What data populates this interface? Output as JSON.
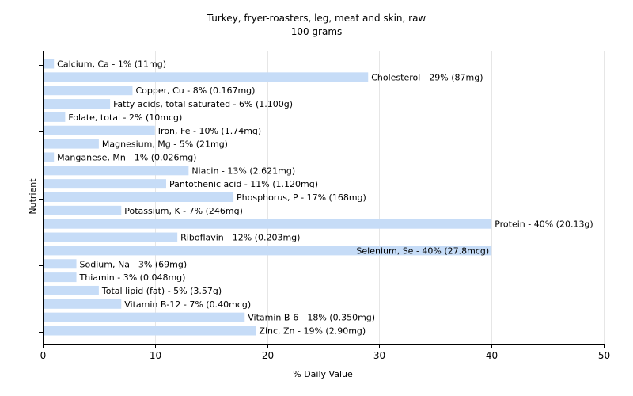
{
  "chart_data": {
    "type": "bar",
    "orientation": "horizontal",
    "title": "Turkey, fryer-roasters, leg, meat and skin, raw",
    "subtitle": "100 grams",
    "xlabel": "% Daily Value",
    "ylabel": "Nutrient",
    "xlim": [
      0,
      50
    ],
    "xticks": [
      0,
      10,
      20,
      30,
      40,
      50
    ],
    "grid": true,
    "bar_color": "#c6dcf7",
    "categories": [
      "Calcium, Ca",
      "Cholesterol",
      "Copper, Cu",
      "Fatty acids, total saturated",
      "Folate, total",
      "Iron, Fe",
      "Magnesium, Mg",
      "Manganese, Mn",
      "Niacin",
      "Pantothenic acid",
      "Phosphorus, P",
      "Potassium, K",
      "Protein",
      "Riboflavin",
      "Selenium, Se",
      "Sodium, Na",
      "Thiamin",
      "Total lipid (fat)",
      "Vitamin B-12",
      "Vitamin B-6",
      "Zinc, Zn"
    ],
    "values": [
      1,
      29,
      8,
      6,
      2,
      10,
      5,
      1,
      13,
      11,
      17,
      7,
      40,
      12,
      40,
      3,
      3,
      5,
      7,
      18,
      19
    ],
    "labels": [
      "Calcium, Ca - 1% (11mg)",
      "Cholesterol - 29% (87mg)",
      "Copper, Cu - 8% (0.167mg)",
      "Fatty acids, total saturated - 6% (1.100g)",
      "Folate, total - 2% (10mcg)",
      "Iron, Fe - 10% (1.74mg)",
      "Magnesium, Mg - 5% (21mg)",
      "Manganese, Mn - 1% (0.026mg)",
      "Niacin - 13% (2.621mg)",
      "Pantothenic acid - 11% (1.120mg)",
      "Phosphorus, P - 17% (168mg)",
      "Potassium, K - 7% (246mg)",
      "Protein - 40% (20.13g)",
      "Riboflavin - 12% (0.203mg)",
      "Selenium, Se - 40% (27.8mcg)",
      "Sodium, Na - 3% (69mg)",
      "Thiamin - 3% (0.048mg)",
      "Total lipid (fat) - 5% (3.57g)",
      "Vitamin B-12 - 7% (0.40mcg)",
      "Vitamin B-6 - 18% (0.350mg)",
      "Zinc, Zn - 19% (2.90mg)"
    ]
  }
}
